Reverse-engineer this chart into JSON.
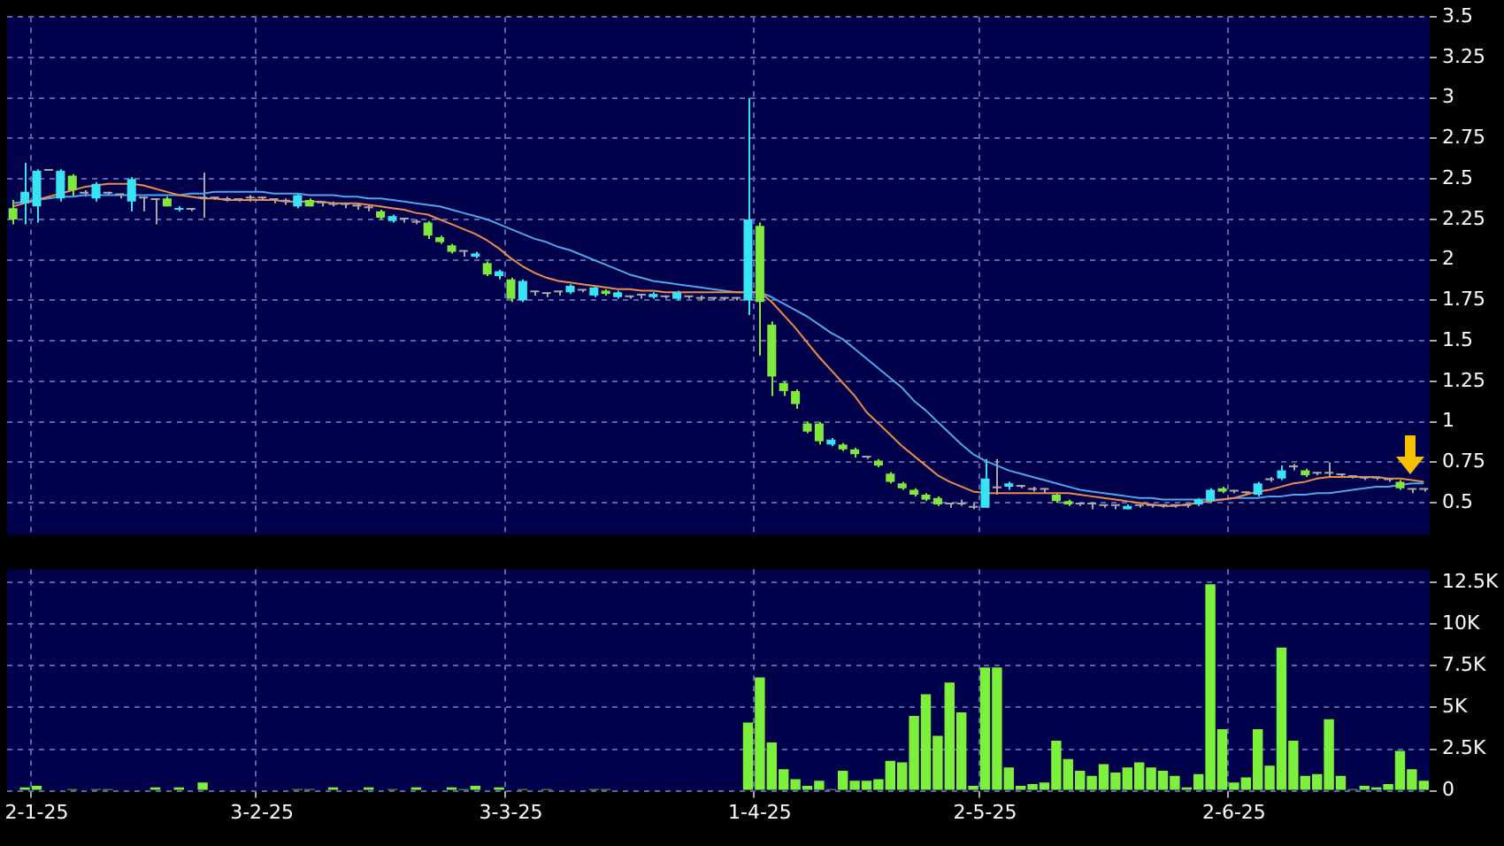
{
  "chart_data": [
    {
      "type": "candlestick",
      "tick_labels": "y",
      "grid": true,
      "ylim": [
        0.3,
        3.5
      ],
      "yticks": [
        0.5,
        0.75,
        1,
        1.25,
        1.5,
        1.75,
        2,
        2.25,
        2.5,
        2.75,
        3,
        3.25,
        3.5
      ],
      "categories": [
        null,
        null,
        null,
        null,
        null,
        null,
        null,
        null,
        null,
        null,
        null,
        null,
        null,
        null,
        null,
        null,
        null,
        null,
        null,
        null,
        null,
        null,
        null,
        null,
        null,
        null,
        null,
        null,
        null,
        null,
        null,
        null,
        null,
        null,
        null,
        null,
        null,
        null,
        null,
        null,
        null,
        null,
        null,
        null,
        null,
        null,
        null,
        null,
        null,
        null,
        null,
        null,
        null,
        null,
        null,
        null,
        null,
        null,
        null,
        null,
        null,
        null,
        null,
        null,
        null,
        null,
        null,
        null,
        null,
        null,
        null,
        null,
        null,
        null,
        null,
        null,
        null,
        null,
        null,
        null,
        null,
        null,
        null,
        null,
        null,
        null,
        null,
        null,
        null,
        null,
        null,
        null,
        null,
        null,
        null,
        null,
        null,
        null,
        null,
        null,
        null,
        null,
        null,
        null,
        null,
        null,
        null,
        null,
        null,
        null,
        null,
        null,
        null,
        null,
        null,
        null,
        null,
        null,
        null,
        null
      ],
      "ohlc": [
        [
          2.32,
          2.37,
          2.22,
          2.25
        ],
        [
          2.35,
          2.6,
          2.22,
          2.42
        ],
        [
          2.33,
          2.56,
          2.23,
          2.55
        ],
        [
          2.55,
          2.55,
          2.55,
          2.55
        ],
        [
          2.38,
          2.56,
          2.36,
          2.55
        ],
        [
          2.52,
          2.53,
          2.39,
          2.43
        ],
        [
          2.41,
          2.43,
          2.39,
          2.41
        ],
        [
          2.38,
          2.48,
          2.36,
          2.47
        ],
        [
          2.41,
          2.42,
          2.4,
          2.41
        ],
        [
          2.4,
          2.41,
          2.38,
          2.4
        ],
        [
          2.36,
          2.51,
          2.3,
          2.5
        ],
        [
          2.38,
          2.39,
          2.3,
          2.38
        ],
        [
          2.37,
          2.38,
          2.22,
          2.37
        ],
        [
          2.38,
          2.39,
          2.33,
          2.33
        ],
        [
          2.31,
          2.33,
          2.3,
          2.32
        ],
        [
          2.31,
          2.32,
          2.3,
          2.31
        ],
        [
          2.38,
          2.54,
          2.26,
          2.38
        ],
        [
          2.38,
          2.39,
          2.37,
          2.38
        ],
        [
          2.37,
          2.39,
          2.36,
          2.37
        ],
        [
          2.37,
          2.38,
          2.36,
          2.37
        ],
        [
          2.38,
          2.4,
          2.36,
          2.38
        ],
        [
          2.38,
          2.39,
          2.37,
          2.38
        ],
        [
          2.37,
          2.38,
          2.35,
          2.37
        ],
        [
          2.36,
          2.38,
          2.34,
          2.36
        ],
        [
          2.33,
          2.41,
          2.32,
          2.4
        ],
        [
          2.37,
          2.38,
          2.33,
          2.33
        ],
        [
          2.35,
          2.36,
          2.33,
          2.35
        ],
        [
          2.34,
          2.36,
          2.33,
          2.34
        ],
        [
          2.34,
          2.35,
          2.32,
          2.34
        ],
        [
          2.33,
          2.35,
          2.31,
          2.33
        ],
        [
          2.32,
          2.34,
          2.3,
          2.32
        ],
        [
          2.3,
          2.31,
          2.25,
          2.26
        ],
        [
          2.24,
          2.28,
          2.23,
          2.27
        ],
        [
          2.25,
          2.26,
          2.23,
          2.25
        ],
        [
          2.23,
          2.25,
          2.22,
          2.23
        ],
        [
          2.23,
          2.24,
          2.13,
          2.15
        ],
        [
          2.14,
          2.15,
          2.1,
          2.11
        ],
        [
          2.09,
          2.1,
          2.04,
          2.05
        ],
        [
          2.05,
          2.06,
          2.02,
          2.05
        ],
        [
          2.02,
          2.05,
          2.01,
          2.04
        ],
        [
          1.98,
          1.99,
          1.9,
          1.91
        ],
        [
          1.9,
          1.94,
          1.88,
          1.93
        ],
        [
          1.88,
          1.89,
          1.74,
          1.76
        ],
        [
          1.75,
          1.88,
          1.74,
          1.87
        ],
        [
          1.8,
          1.81,
          1.78,
          1.8
        ],
        [
          1.79,
          1.8,
          1.77,
          1.79
        ],
        [
          1.8,
          1.81,
          1.78,
          1.8
        ],
        [
          1.8,
          1.85,
          1.79,
          1.84
        ],
        [
          1.81,
          1.82,
          1.8,
          1.81
        ],
        [
          1.78,
          1.84,
          1.77,
          1.83
        ],
        [
          1.81,
          1.82,
          1.78,
          1.79
        ],
        [
          1.77,
          1.81,
          1.76,
          1.8
        ],
        [
          1.77,
          1.78,
          1.76,
          1.77
        ],
        [
          1.78,
          1.79,
          1.76,
          1.78
        ],
        [
          1.77,
          1.8,
          1.76,
          1.79
        ],
        [
          1.77,
          1.78,
          1.76,
          1.77
        ],
        [
          1.76,
          1.81,
          1.75,
          1.8
        ],
        [
          1.77,
          1.78,
          1.76,
          1.77
        ],
        [
          1.76,
          1.78,
          1.75,
          1.76
        ],
        [
          1.76,
          1.77,
          1.75,
          1.76
        ],
        [
          1.76,
          1.77,
          1.75,
          1.76
        ],
        [
          1.76,
          1.77,
          1.75,
          1.76
        ],
        [
          1.75,
          3.0,
          1.66,
          2.25
        ],
        [
          2.21,
          2.23,
          1.41,
          1.74
        ],
        [
          1.6,
          1.62,
          1.16,
          1.28
        ],
        [
          1.24,
          1.25,
          1.16,
          1.19
        ],
        [
          1.19,
          1.2,
          1.08,
          1.11
        ],
        [
          0.99,
          1.0,
          0.93,
          0.94
        ],
        [
          0.99,
          1.0,
          0.86,
          0.88
        ],
        [
          0.86,
          0.9,
          0.85,
          0.89
        ],
        [
          0.86,
          0.87,
          0.82,
          0.83
        ],
        [
          0.83,
          0.84,
          0.78,
          0.8
        ],
        [
          0.78,
          0.79,
          0.77,
          0.78
        ],
        [
          0.76,
          0.77,
          0.72,
          0.73
        ],
        [
          0.68,
          0.69,
          0.62,
          0.63
        ],
        [
          0.62,
          0.63,
          0.58,
          0.59
        ],
        [
          0.58,
          0.59,
          0.54,
          0.55
        ],
        [
          0.55,
          0.56,
          0.51,
          0.52
        ],
        [
          0.53,
          0.54,
          0.48,
          0.49
        ],
        [
          0.49,
          0.5,
          0.47,
          0.49
        ],
        [
          0.49,
          0.52,
          0.48,
          0.49
        ],
        [
          0.47,
          0.5,
          0.46,
          0.47
        ],
        [
          0.47,
          0.77,
          0.47,
          0.65
        ],
        [
          0.59,
          0.77,
          0.55,
          0.59
        ],
        [
          0.6,
          0.63,
          0.58,
          0.62
        ],
        [
          0.6,
          0.61,
          0.59,
          0.6
        ],
        [
          0.58,
          0.6,
          0.57,
          0.58
        ],
        [
          0.58,
          0.59,
          0.56,
          0.58
        ],
        [
          0.55,
          0.56,
          0.5,
          0.51
        ],
        [
          0.51,
          0.52,
          0.48,
          0.49
        ],
        [
          0.49,
          0.5,
          0.48,
          0.49
        ],
        [
          0.49,
          0.5,
          0.46,
          0.49
        ],
        [
          0.48,
          0.49,
          0.47,
          0.48
        ],
        [
          0.48,
          0.49,
          0.46,
          0.48
        ],
        [
          0.46,
          0.49,
          0.46,
          0.48
        ],
        [
          0.48,
          0.49,
          0.47,
          0.48
        ],
        [
          0.48,
          0.49,
          0.47,
          0.48
        ],
        [
          0.48,
          0.49,
          0.47,
          0.48
        ],
        [
          0.48,
          0.49,
          0.47,
          0.48
        ],
        [
          0.48,
          0.49,
          0.47,
          0.48
        ],
        [
          0.49,
          0.53,
          0.48,
          0.52
        ],
        [
          0.51,
          0.59,
          0.5,
          0.58
        ],
        [
          0.59,
          0.6,
          0.56,
          0.57
        ],
        [
          0.57,
          0.58,
          0.56,
          0.57
        ],
        [
          0.56,
          0.57,
          0.55,
          0.56
        ],
        [
          0.55,
          0.63,
          0.54,
          0.62
        ],
        [
          0.64,
          0.66,
          0.63,
          0.64
        ],
        [
          0.65,
          0.73,
          0.64,
          0.7
        ],
        [
          0.72,
          0.74,
          0.7,
          0.72
        ],
        [
          0.7,
          0.71,
          0.66,
          0.67
        ],
        [
          0.68,
          0.69,
          0.67,
          0.68
        ],
        [
          0.68,
          0.75,
          0.66,
          0.68
        ],
        [
          0.67,
          0.68,
          0.66,
          0.67
        ],
        [
          0.66,
          0.67,
          0.65,
          0.66
        ],
        [
          0.65,
          0.66,
          0.64,
          0.65
        ],
        [
          0.65,
          0.66,
          0.64,
          0.65
        ],
        [
          0.64,
          0.65,
          0.63,
          0.64
        ],
        [
          0.63,
          0.64,
          0.58,
          0.59
        ],
        [
          0.58,
          0.59,
          0.56,
          0.58
        ],
        [
          0.58,
          0.59,
          0.57,
          0.58
        ]
      ],
      "colors": [
        "#7ee83c",
        "#38e4f4",
        "#38e4f4",
        "#a8a8a8",
        "#38e4f4",
        "#7ee83c",
        "#a8a8a8",
        "#38e4f4",
        "#a8a8a8",
        "#a8a8a8",
        "#38e4f4",
        "#a8a8a8",
        "#a8a8a8",
        "#7ee83c",
        "#38e4f4",
        "#a8a8a8",
        "#a8a8a8",
        "#a8a8a8",
        "#a8a8a8",
        "#a8a8a8",
        "#a8a8a8",
        "#a8a8a8",
        "#a8a8a8",
        "#a8a8a8",
        "#38e4f4",
        "#7ee83c",
        "#a8a8a8",
        "#a8a8a8",
        "#a8a8a8",
        "#a8a8a8",
        "#a8a8a8",
        "#7ee83c",
        "#38e4f4",
        "#a8a8a8",
        "#a8a8a8",
        "#7ee83c",
        "#7ee83c",
        "#7ee83c",
        "#a8a8a8",
        "#38e4f4",
        "#7ee83c",
        "#38e4f4",
        "#7ee83c",
        "#38e4f4",
        "#a8a8a8",
        "#a8a8a8",
        "#a8a8a8",
        "#38e4f4",
        "#a8a8a8",
        "#38e4f4",
        "#7ee83c",
        "#38e4f4",
        "#a8a8a8",
        "#a8a8a8",
        "#38e4f4",
        "#a8a8a8",
        "#38e4f4",
        "#a8a8a8",
        "#a8a8a8",
        "#a8a8a8",
        "#a8a8a8",
        "#a8a8a8",
        "#38e4f4",
        "#7ee83c",
        "#7ee83c",
        "#7ee83c",
        "#7ee83c",
        "#7ee83c",
        "#7ee83c",
        "#38e4f4",
        "#7ee83c",
        "#7ee83c",
        "#a8a8a8",
        "#7ee83c",
        "#7ee83c",
        "#7ee83c",
        "#7ee83c",
        "#7ee83c",
        "#7ee83c",
        "#a8a8a8",
        "#a8a8a8",
        "#a8a8a8",
        "#38e4f4",
        "#a8a8a8",
        "#38e4f4",
        "#a8a8a8",
        "#a8a8a8",
        "#a8a8a8",
        "#7ee83c",
        "#7ee83c",
        "#a8a8a8",
        "#a8a8a8",
        "#a8a8a8",
        "#a8a8a8",
        "#38e4f4",
        "#a8a8a8",
        "#a8a8a8",
        "#a8a8a8",
        "#a8a8a8",
        "#a8a8a8",
        "#38e4f4",
        "#38e4f4",
        "#7ee83c",
        "#a8a8a8",
        "#a8a8a8",
        "#38e4f4",
        "#a8a8a8",
        "#38e4f4",
        "#a8a8a8",
        "#7ee83c",
        "#a8a8a8",
        "#a8a8a8",
        "#a8a8a8",
        "#a8a8a8",
        "#a8a8a8",
        "#a8a8a8",
        "#a8a8a8",
        "#7ee83c",
        "#a8a8a8",
        "#a8a8a8"
      ],
      "series": [
        {
          "type": "line",
          "color": "#f08a4b",
          "values": [
            2.33,
            2.35,
            2.37,
            2.39,
            2.41,
            2.43,
            2.45,
            2.46,
            2.47,
            2.47,
            2.47,
            2.46,
            2.44,
            2.42,
            2.4,
            2.39,
            2.38,
            2.38,
            2.37,
            2.37,
            2.37,
            2.37,
            2.37,
            2.36,
            2.36,
            2.36,
            2.36,
            2.35,
            2.35,
            2.35,
            2.34,
            2.33,
            2.32,
            2.31,
            2.29,
            2.28,
            2.25,
            2.22,
            2.19,
            2.16,
            2.12,
            2.07,
            2.01,
            1.96,
            1.92,
            1.89,
            1.87,
            1.86,
            1.85,
            1.84,
            1.83,
            1.82,
            1.82,
            1.81,
            1.81,
            1.8,
            1.8,
            1.8,
            1.8,
            1.8,
            1.8,
            1.8,
            1.8,
            1.8,
            1.74,
            1.66,
            1.58,
            1.49,
            1.4,
            1.32,
            1.24,
            1.16,
            1.06,
            0.99,
            0.92,
            0.85,
            0.79,
            0.73,
            0.67,
            0.63,
            0.6,
            0.57,
            0.56,
            0.56,
            0.56,
            0.56,
            0.56,
            0.56,
            0.56,
            0.56,
            0.55,
            0.54,
            0.53,
            0.52,
            0.51,
            0.5,
            0.49,
            0.48,
            0.48,
            0.49,
            0.5,
            0.51,
            0.52,
            0.53,
            0.55,
            0.57,
            0.58,
            0.6,
            0.62,
            0.63,
            0.65,
            0.66,
            0.66,
            0.66,
            0.66,
            0.66,
            0.65,
            0.65,
            0.64,
            0.63
          ]
        },
        {
          "type": "line",
          "color": "#4aa8ee",
          "values": [
            2.35,
            2.36,
            2.37,
            2.38,
            2.39,
            2.39,
            2.4,
            2.4,
            2.4,
            2.4,
            2.4,
            2.4,
            2.4,
            2.4,
            2.4,
            2.41,
            2.41,
            2.42,
            2.42,
            2.42,
            2.42,
            2.42,
            2.41,
            2.41,
            2.41,
            2.4,
            2.4,
            2.4,
            2.39,
            2.39,
            2.38,
            2.38,
            2.37,
            2.36,
            2.35,
            2.34,
            2.33,
            2.31,
            2.29,
            2.27,
            2.25,
            2.22,
            2.19,
            2.16,
            2.13,
            2.11,
            2.08,
            2.06,
            2.03,
            2.0,
            1.97,
            1.94,
            1.91,
            1.89,
            1.87,
            1.86,
            1.85,
            1.84,
            1.83,
            1.82,
            1.81,
            1.8,
            1.8,
            1.8,
            1.77,
            1.73,
            1.69,
            1.65,
            1.6,
            1.55,
            1.51,
            1.45,
            1.39,
            1.33,
            1.27,
            1.21,
            1.13,
            1.07,
            1.0,
            0.93,
            0.86,
            0.8,
            0.76,
            0.73,
            0.7,
            0.68,
            0.66,
            0.64,
            0.62,
            0.6,
            0.58,
            0.57,
            0.56,
            0.55,
            0.54,
            0.53,
            0.53,
            0.52,
            0.52,
            0.52,
            0.52,
            0.52,
            0.52,
            0.53,
            0.53,
            0.53,
            0.54,
            0.54,
            0.55,
            0.55,
            0.56,
            0.56,
            0.57,
            0.58,
            0.59,
            0.6,
            0.6,
            0.61,
            0.62,
            0.62
          ]
        }
      ]
    },
    {
      "type": "bar",
      "grid": true,
      "color": "#7cf03a",
      "ylim": [
        0,
        13300
      ],
      "yticks": [
        0,
        {
          "value": 2500,
          "label": "2.5K"
        },
        {
          "value": 5000,
          "label": "5K"
        },
        {
          "value": 7500,
          "label": "7.5K"
        },
        {
          "value": 10000,
          "label": "10K"
        },
        {
          "value": 12500,
          "label": "12.5K"
        }
      ],
      "categories": [
        null,
        null,
        "2-1-25",
        null,
        null,
        null,
        null,
        null,
        null,
        null,
        null,
        null,
        null,
        null,
        null,
        null,
        null,
        null,
        null,
        null,
        null,
        "3-2-25",
        null,
        null,
        null,
        null,
        null,
        null,
        null,
        null,
        null,
        null,
        null,
        null,
        null,
        null,
        null,
        null,
        null,
        null,
        null,
        null,
        "3-3-25",
        null,
        null,
        null,
        null,
        null,
        null,
        null,
        null,
        null,
        null,
        null,
        null,
        null,
        null,
        null,
        null,
        null,
        null,
        null,
        null,
        "1-4-25",
        null,
        null,
        null,
        null,
        null,
        null,
        null,
        null,
        null,
        null,
        null,
        null,
        null,
        null,
        null,
        null,
        null,
        null,
        "2-5-25",
        null,
        null,
        null,
        null,
        null,
        null,
        null,
        null,
        null,
        null,
        null,
        null,
        null,
        null,
        null,
        null,
        null,
        null,
        null,
        null,
        "2-6-25",
        null,
        null,
        null,
        null,
        null,
        null,
        null,
        null,
        null,
        null,
        null,
        null,
        null,
        null,
        null,
        null
      ],
      "values": [
        0,
        200,
        300,
        0,
        0,
        100,
        0,
        100,
        100,
        0,
        0,
        0,
        200,
        0,
        200,
        0,
        500,
        0,
        0,
        0,
        0,
        0,
        0,
        0,
        100,
        100,
        0,
        200,
        0,
        0,
        200,
        0,
        100,
        0,
        200,
        0,
        0,
        200,
        100,
        300,
        0,
        200,
        0,
        100,
        0,
        100,
        0,
        0,
        0,
        100,
        100,
        0,
        0,
        0,
        0,
        0,
        0,
        0,
        0,
        0,
        0,
        0,
        4100,
        6800,
        2900,
        1300,
        700,
        300,
        600,
        100,
        1200,
        600,
        600,
        700,
        1800,
        1700,
        4500,
        5800,
        3300,
        6500,
        4700,
        300,
        7400,
        7400,
        1400,
        300,
        400,
        500,
        3000,
        1900,
        1200,
        900,
        1600,
        1100,
        1400,
        1700,
        1400,
        1200,
        900,
        200,
        1000,
        12400,
        3700,
        500,
        800,
        3700,
        1500,
        8600,
        3000,
        900,
        1000,
        4300,
        900,
        100,
        300,
        200,
        400,
        2400,
        1300,
        600
      ]
    }
  ]
}
